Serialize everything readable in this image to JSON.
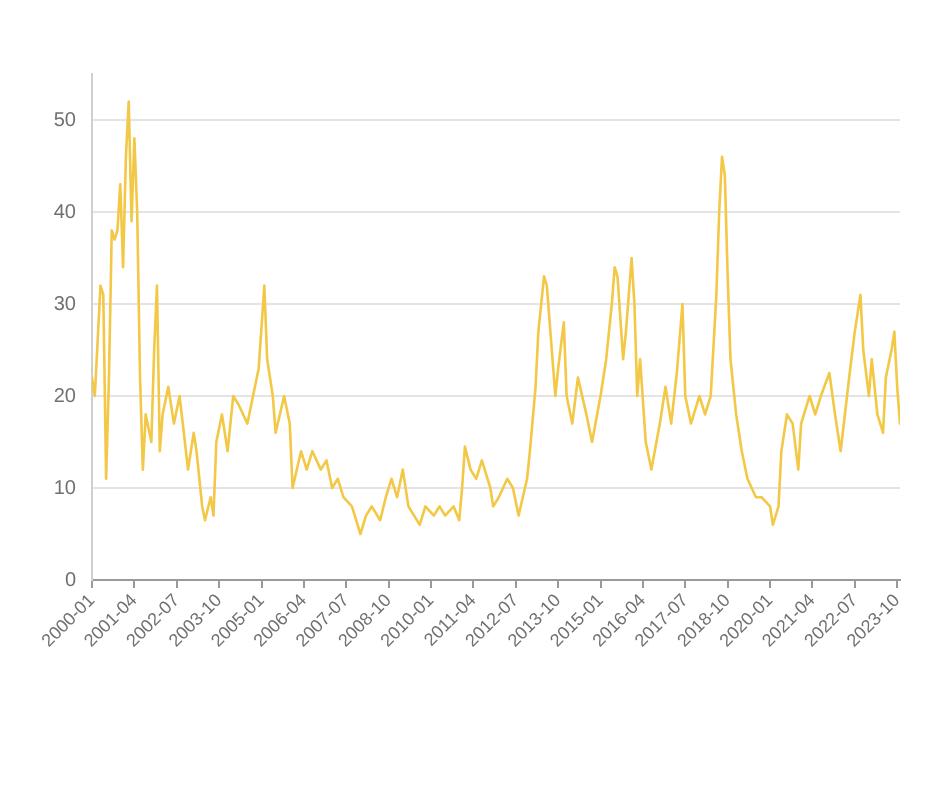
{
  "chart_data": {
    "type": "line",
    "color": "#f3c846",
    "x": [
      "2000-01",
      "2000-02",
      "2000-04",
      "2000-05",
      "2000-06",
      "2000-07",
      "2000-08",
      "2000-09",
      "2000-10",
      "2000-11",
      "2000-12",
      "2001-01",
      "2001-02",
      "2001-03",
      "2001-04",
      "2001-05",
      "2001-06",
      "2001-07",
      "2001-08",
      "2001-10",
      "2001-11",
      "2001-12",
      "2002-01",
      "2002-02",
      "2002-04",
      "2002-06",
      "2002-08",
      "2002-11",
      "2003-01",
      "2003-02",
      "2003-04",
      "2003-05",
      "2003-07",
      "2003-08",
      "2003-09",
      "2003-11",
      "2004-01",
      "2004-03",
      "2004-05",
      "2004-08",
      "2004-10",
      "2004-12",
      "2005-02",
      "2005-03",
      "2005-05",
      "2005-06",
      "2005-09",
      "2005-11",
      "2005-12",
      "2006-03",
      "2006-05",
      "2006-07",
      "2006-10",
      "2006-12",
      "2007-02",
      "2007-04",
      "2007-06",
      "2007-09",
      "2007-12",
      "2008-02",
      "2008-04",
      "2008-07",
      "2008-09",
      "2008-11",
      "2009-01",
      "2009-03",
      "2009-05",
      "2009-07",
      "2009-09",
      "2009-11",
      "2010-02",
      "2010-04",
      "2010-06",
      "2010-09",
      "2010-11",
      "2010-12",
      "2011-01",
      "2011-03",
      "2011-05",
      "2011-07",
      "2011-10",
      "2011-11",
      "2012-01",
      "2012-04",
      "2012-06",
      "2012-08",
      "2012-11",
      "2012-12",
      "2013-02",
      "2013-03",
      "2013-05",
      "2013-06",
      "2013-08",
      "2013-09",
      "2013-10",
      "2013-12",
      "2014-01",
      "2014-03",
      "2014-05",
      "2014-08",
      "2014-10",
      "2015-01",
      "2015-03",
      "2015-05",
      "2015-06",
      "2015-07",
      "2015-09",
      "2015-10",
      "2015-12",
      "2016-01",
      "2016-02",
      "2016-03",
      "2016-05",
      "2016-07",
      "2016-10",
      "2016-12",
      "2017-02",
      "2017-04",
      "2017-06",
      "2017-07",
      "2017-09",
      "2017-12",
      "2018-02",
      "2018-04",
      "2018-06",
      "2018-07",
      "2018-08",
      "2018-09",
      "2018-10",
      "2018-11",
      "2019-01",
      "2019-03",
      "2019-05",
      "2019-08",
      "2019-10",
      "2020-01",
      "2020-02",
      "2020-04",
      "2020-05",
      "2020-07",
      "2020-09",
      "2020-11",
      "2020-12",
      "2021-03",
      "2021-05",
      "2021-07",
      "2021-10",
      "2021-12",
      "2022-02",
      "2022-05",
      "2022-07",
      "2022-09",
      "2022-10",
      "2022-12",
      "2023-01",
      "2023-03",
      "2023-05",
      "2023-06",
      "2023-08",
      "2023-09",
      "2023-10",
      "2023-11"
    ],
    "values": [
      22,
      20,
      32,
      31,
      11,
      22,
      38,
      37,
      38,
      43,
      34,
      46,
      52,
      39,
      48,
      40,
      22,
      12,
      18,
      15,
      25,
      32,
      14,
      18,
      21,
      17,
      20,
      12,
      16,
      14,
      8,
      6.5,
      9,
      7,
      15,
      18,
      14,
      20,
      19,
      17,
      20,
      23,
      32,
      24,
      20,
      16,
      20,
      17,
      10,
      14,
      12,
      14,
      12,
      13,
      10,
      11,
      9,
      8,
      5,
      7,
      8,
      6.5,
      9,
      11,
      9,
      12,
      8,
      7,
      6,
      8,
      7,
      8,
      7,
      8,
      6.5,
      10,
      14.5,
      12,
      11,
      13,
      10,
      8,
      9,
      11,
      10,
      7,
      11,
      14,
      21,
      27,
      33,
      32,
      24,
      20,
      23,
      28,
      20,
      17,
      22,
      18,
      15,
      20,
      24,
      30,
      34,
      33,
      24,
      27,
      35,
      30,
      20,
      24,
      15,
      12,
      17,
      21,
      17,
      22.5,
      30,
      20,
      17,
      20,
      18,
      20,
      31,
      40,
      46,
      44,
      33,
      24,
      18,
      14,
      11,
      9,
      9,
      8,
      6,
      8,
      14,
      18,
      17,
      12,
      17,
      20,
      18,
      20,
      22.5,
      18,
      14,
      22,
      27,
      31,
      25,
      20,
      24,
      18,
      16,
      22,
      25,
      27,
      21,
      17
    ],
    "xlim": [
      "2000-01",
      "2023-11"
    ],
    "xticks": [
      "2000-01",
      "2001-04",
      "2002-07",
      "2003-10",
      "2005-01",
      "2006-04",
      "2007-07",
      "2008-10",
      "2010-01",
      "2011-04",
      "2012-07",
      "2013-10",
      "2015-01",
      "2016-04",
      "2017-07",
      "2018-10",
      "2020-01",
      "2021-04",
      "2022-07",
      "2023-10"
    ],
    "ylim": [
      0,
      55
    ],
    "yticks": [
      0,
      10,
      20,
      30,
      40,
      50
    ],
    "grid": "y"
  }
}
